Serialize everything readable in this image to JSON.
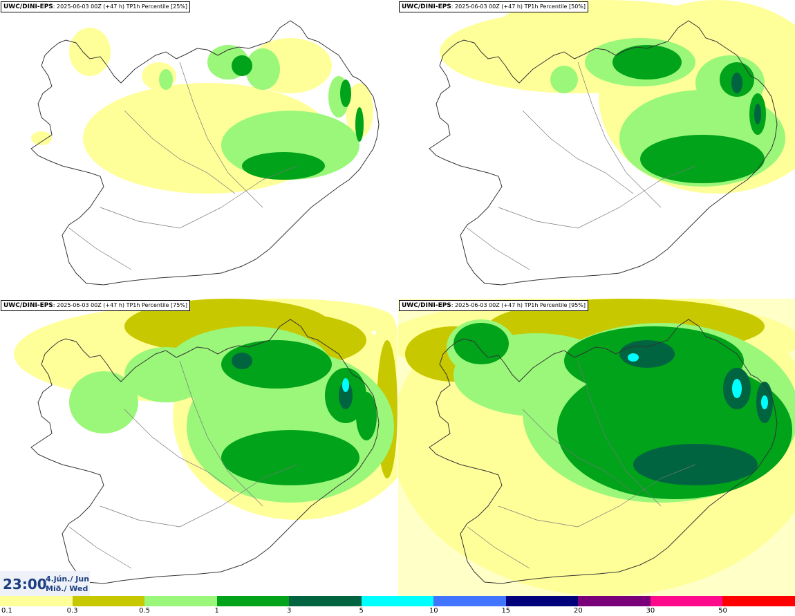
{
  "panels": [
    {
      "model": "UWC/DINI-EPS",
      "info": "2025-06-03 00Z (+47 h) TP1h Percentile [25%]",
      "percentile": 25
    },
    {
      "model": "UWC/DINI-EPS",
      "info": "2025-06-03 00Z (+47 h) TP1h Percentile [50%]",
      "percentile": 50
    },
    {
      "model": "UWC/DINI-EPS",
      "info": "2025-06-03 00Z (+47 h) TP1h Percentile [75%]",
      "percentile": 75
    },
    {
      "model": "UWC/DINI-EPS",
      "info": "2025-06-03 00Z (+47 h) TP1h Percentile [95%]",
      "percentile": 95
    }
  ],
  "time": {
    "hour": "23:00",
    "date": "4.jún./ Jun",
    "weekday": "Mið./ Wed"
  },
  "legend": {
    "colors": [
      "#ffff9a",
      "#c8c800",
      "#9af77a",
      "#00a319",
      "#006440",
      "#00ffff",
      "#4174ff",
      "#00007a",
      "#7a007a",
      "#ff0a8c",
      "#ff0000"
    ],
    "labels": [
      "0.1",
      "0.3",
      "0.5",
      "1",
      "3",
      "5",
      "10",
      "15",
      "20",
      "30",
      "50"
    ]
  }
}
